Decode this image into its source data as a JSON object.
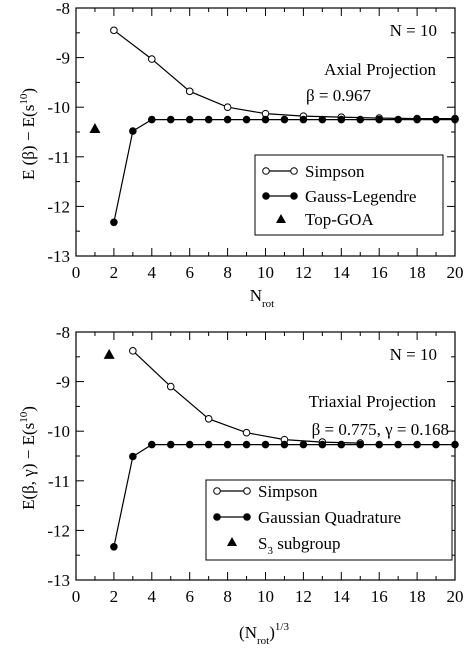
{
  "chart_data": [
    {
      "type": "line",
      "panel_label": "top",
      "xlabel_main": "N",
      "xlabel_sub": "rot",
      "xlabel_sup": "",
      "ylabel": "E (β) − E(s",
      "ylabel_sup": "10",
      "ylabel_close": ")",
      "xlim": [
        0,
        20
      ],
      "ylim": [
        -13,
        -8
      ],
      "xticks": [
        0,
        2,
        4,
        6,
        8,
        10,
        12,
        14,
        16,
        18,
        20
      ],
      "yticks": [
        -13,
        -12,
        -11,
        -10,
        -9,
        -8
      ],
      "grid": false,
      "annotations": {
        "n_label": "N = 10",
        "projection": "Axial Projection",
        "params": "β = 0.967"
      },
      "legend_position": "lower-right",
      "series": [
        {
          "name": "Simpson",
          "marker": "open-circle",
          "x": [
            2,
            4,
            6,
            8,
            10,
            12,
            14,
            16,
            18,
            20
          ],
          "y": [
            -8.45,
            -9.03,
            -9.68,
            -10.0,
            -10.13,
            -10.18,
            -10.2,
            -10.22,
            -10.23,
            -10.23
          ]
        },
        {
          "name": "Gauss-Legendre",
          "marker": "filled-circle",
          "x": [
            2,
            3,
            4,
            5,
            6,
            7,
            8,
            9,
            10,
            11,
            12,
            13,
            14,
            15,
            16,
            17,
            18,
            19,
            20
          ],
          "y": [
            -12.32,
            -10.48,
            -10.25,
            -10.25,
            -10.25,
            -10.25,
            -10.25,
            -10.25,
            -10.25,
            -10.25,
            -10.25,
            -10.25,
            -10.25,
            -10.25,
            -10.25,
            -10.25,
            -10.25,
            -10.25,
            -10.25
          ]
        },
        {
          "name": "Top-GOA",
          "marker": "filled-triangle",
          "x": [
            1
          ],
          "y": [
            -10.43
          ]
        }
      ]
    },
    {
      "type": "line",
      "panel_label": "bottom",
      "xlabel_main": "(N",
      "xlabel_sub": "rot",
      "xlabel_close": ")",
      "xlabel_sup": "1/3",
      "ylabel": "E(β, γ) − E(s",
      "ylabel_sup": "10",
      "ylabel_close": ")",
      "xlim": [
        0,
        20
      ],
      "ylim": [
        -13,
        -8
      ],
      "xticks": [
        0,
        2,
        4,
        6,
        8,
        10,
        12,
        14,
        16,
        18,
        20
      ],
      "yticks": [
        -13,
        -12,
        -11,
        -10,
        -9,
        -8
      ],
      "grid": false,
      "annotations": {
        "n_label": "N = 10",
        "projection": "Triaxial Projection",
        "params": "β = 0.775, γ = 0.168"
      },
      "legend_position": "lower-right",
      "series": [
        {
          "name": "Simpson",
          "marker": "open-circle",
          "x": [
            3,
            5,
            7,
            9,
            11,
            13,
            15
          ],
          "y": [
            -8.38,
            -9.1,
            -9.75,
            -10.03,
            -10.17,
            -10.22,
            -10.24
          ]
        },
        {
          "name": "Gaussian Quadrature",
          "marker": "filled-circle",
          "x": [
            2,
            3,
            4,
            5,
            6,
            7,
            8,
            9,
            10,
            11,
            12,
            13,
            14,
            15,
            16,
            17,
            18,
            19,
            20
          ],
          "y": [
            -12.33,
            -10.51,
            -10.27,
            -10.27,
            -10.27,
            -10.27,
            -10.27,
            -10.27,
            -10.27,
            -10.27,
            -10.27,
            -10.27,
            -10.27,
            -10.27,
            -10.27,
            -10.27,
            -10.27,
            -10.27,
            -10.27
          ]
        },
        {
          "name": "S",
          "name_sub": "3",
          "name_rest": " subgroup",
          "marker": "filled-triangle",
          "x": [
            1.75
          ],
          "y": [
            -8.45
          ]
        }
      ]
    }
  ]
}
